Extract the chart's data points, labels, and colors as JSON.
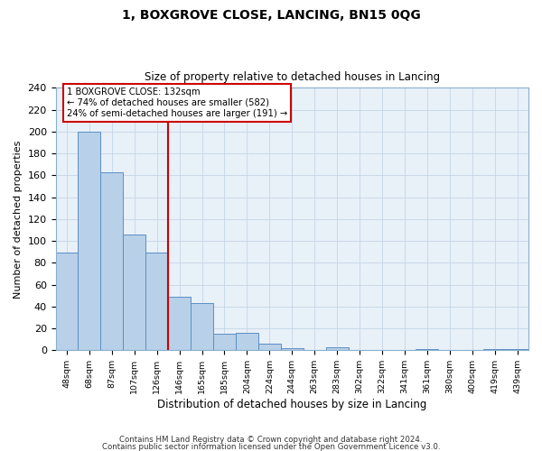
{
  "title": "1, BOXGROVE CLOSE, LANCING, BN15 0QG",
  "subtitle": "Size of property relative to detached houses in Lancing",
  "xlabel": "Distribution of detached houses by size in Lancing",
  "ylabel": "Number of detached properties",
  "bar_labels": [
    "48sqm",
    "68sqm",
    "87sqm",
    "107sqm",
    "126sqm",
    "146sqm",
    "165sqm",
    "185sqm",
    "204sqm",
    "224sqm",
    "244sqm",
    "263sqm",
    "283sqm",
    "302sqm",
    "322sqm",
    "341sqm",
    "361sqm",
    "380sqm",
    "400sqm",
    "419sqm",
    "439sqm"
  ],
  "bar_values": [
    89,
    200,
    163,
    106,
    89,
    49,
    43,
    15,
    16,
    6,
    2,
    0,
    3,
    0,
    0,
    0,
    1,
    0,
    0,
    1,
    1
  ],
  "bar_color": "#b8d0e8",
  "bar_edge_color": "#5b8fc4",
  "vline_x_idx": 4.5,
  "vline_color": "#cc0000",
  "annotation_text": "1 BOXGROVE CLOSE: 132sqm\n← 74% of detached houses are smaller (582)\n24% of semi-detached houses are larger (191) →",
  "annotation_box_color": "#ffffff",
  "annotation_box_edge": "#cc0000",
  "ylim": [
    0,
    240
  ],
  "yticks": [
    0,
    20,
    40,
    60,
    80,
    100,
    120,
    140,
    160,
    180,
    200,
    220,
    240
  ],
  "footer_line1": "Contains HM Land Registry data © Crown copyright and database right 2024.",
  "footer_line2": "Contains public sector information licensed under the Open Government Licence v3.0.",
  "bg_color": "#ffffff",
  "plot_bg_color": "#eaf0f8",
  "grid_color": "#c5d5e8",
  "ax_facecolor": "#e8f0f8"
}
